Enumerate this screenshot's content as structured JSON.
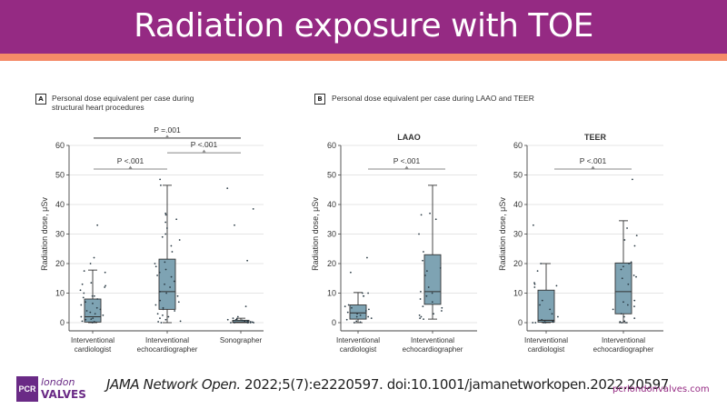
{
  "header": {
    "title": "Radiation exposure with TOE",
    "bg_color": "#952a83",
    "accent_color": "#f58b68"
  },
  "footer": {
    "journal": "JAMA Network Open.",
    "citation_rest": " 2022;5(7):e2220597. doi:10.1001/jamanetworkopen.2022.20597",
    "url": "pcrlondonvalves.com",
    "logo": {
      "pcr": "PCR",
      "london": "london",
      "valves": "VALVES"
    }
  },
  "panels": {
    "A": {
      "label": "A",
      "title_line1": "Personal dose equivalent per case during",
      "title_line2": "structural heart procedures"
    },
    "B": {
      "label": "B",
      "title": "Personal dose equivalent per case during LAAO and TEER"
    }
  },
  "colors": {
    "box_fill": "#7ea3b3",
    "box_stroke": "#333333",
    "point": "#2a3a44",
    "grid": "#dddddd"
  },
  "chart_data": [
    {
      "type": "box",
      "id": "A",
      "title": "",
      "xlabel": "",
      "ylabel": "Radiation dose, μSv",
      "ylim": [
        0,
        60
      ],
      "yticks": [
        0,
        10,
        20,
        30,
        40,
        50,
        60
      ],
      "grid": true,
      "categories": [
        [
          "Interventional",
          "cardiologist"
        ],
        [
          "Interventional",
          "echocardiographer"
        ],
        [
          "Sonographer"
        ]
      ],
      "boxes": [
        {
          "min": 0,
          "q1": 0.2,
          "median": 2,
          "q3": 8,
          "max": 17.8
        },
        {
          "min": 0,
          "q1": 4.5,
          "median": 10.5,
          "q3": 21.5,
          "max": 46.5
        },
        {
          "min": 0,
          "q1": 0,
          "median": 0.2,
          "q3": 0.8,
          "max": 1.5
        }
      ],
      "points": [
        [
          0,
          0.3,
          0.5,
          1,
          1.2,
          1.5,
          2,
          2.5,
          3,
          3.5,
          4,
          4.5,
          5,
          6,
          6.5,
          7,
          8,
          8.5,
          9,
          9,
          10,
          11,
          12,
          12.5,
          13,
          13.5,
          17,
          17.5,
          20,
          22,
          33
        ],
        [
          0,
          0.3,
          0.5,
          1,
          1.5,
          2,
          2.5,
          3,
          4,
          4.5,
          5,
          6,
          7,
          7.5,
          9,
          10,
          10.5,
          12,
          13,
          14,
          15.5,
          16,
          17,
          18,
          19,
          20,
          20.5,
          24,
          26,
          28,
          29,
          30,
          32,
          34,
          35,
          36.5,
          37,
          46.5,
          48.5
        ],
        [
          0,
          0,
          0,
          0,
          0,
          0,
          0.2,
          0.3,
          0.5,
          0.5,
          0.8,
          1,
          1,
          1.2,
          1.5,
          2,
          5.5,
          21,
          33,
          38.5,
          45.5
        ]
      ],
      "annotations": [
        {
          "text": "P <.001",
          "from": 0,
          "to": 1,
          "y": 52
        },
        {
          "text": "P <.001",
          "from": 1,
          "to": 2,
          "y": 57.5
        },
        {
          "text": "P =.001",
          "from": 0,
          "to": 2,
          "y": 62.5
        }
      ]
    },
    {
      "type": "box",
      "id": "B-LAAO",
      "title": "LAAO",
      "ylabel": "Radiation dose, μSv",
      "ylim": [
        0,
        60
      ],
      "yticks": [
        0,
        10,
        20,
        30,
        40,
        50,
        60
      ],
      "grid": true,
      "categories": [
        [
          "Interventional",
          "cardiologist"
        ],
        [
          "Interventional",
          "echocardiographer"
        ]
      ],
      "boxes": [
        {
          "min": 0,
          "q1": 1.2,
          "median": 3.3,
          "q3": 6,
          "max": 10.2
        },
        {
          "min": 1.2,
          "q1": 6.2,
          "median": 10.5,
          "q3": 23,
          "max": 46.5
        }
      ],
      "points": [
        [
          0,
          0.2,
          0.5,
          1,
          1.5,
          2,
          2,
          2.5,
          3,
          3.5,
          4,
          4.5,
          5,
          5.5,
          6,
          9,
          9,
          10,
          10,
          17,
          22
        ],
        [
          1.2,
          1.5,
          2,
          2.5,
          3,
          4,
          5,
          5.5,
          7,
          8,
          9,
          10,
          10.5,
          12,
          16,
          17.5,
          18.5,
          21,
          24,
          30,
          35,
          36.5,
          37
        ]
      ],
      "annotations": [
        {
          "text": "P <.001",
          "from": 0,
          "to": 1,
          "y": 52
        }
      ]
    },
    {
      "type": "box",
      "id": "B-TEER",
      "title": "TEER",
      "ylabel": "Radiation dose, μSv",
      "ylim": [
        0,
        60
      ],
      "yticks": [
        0,
        10,
        20,
        30,
        40,
        50,
        60
      ],
      "grid": true,
      "categories": [
        [
          "Interventional",
          "cardiologist"
        ],
        [
          "Interventional",
          "echocardiographer"
        ]
      ],
      "boxes": [
        {
          "min": 0,
          "q1": 0.2,
          "median": 0.8,
          "q3": 11,
          "max": 20
        },
        {
          "min": 0,
          "q1": 3,
          "median": 10.5,
          "q3": 20.2,
          "max": 34.5
        }
      ],
      "points": [
        [
          0,
          0,
          0,
          0,
          0.2,
          0.3,
          0.5,
          1,
          2,
          3,
          4.5,
          6,
          7.5,
          12,
          12.5,
          13,
          13.5,
          17.5,
          20,
          33
        ],
        [
          0,
          0,
          0.3,
          0.5,
          1.5,
          2,
          3,
          4.5,
          5.5,
          6,
          7,
          7.5,
          13,
          15,
          15.5,
          16,
          18,
          19,
          20,
          20.5,
          26,
          28,
          29.5,
          32,
          48.5
        ]
      ],
      "annotations": [
        {
          "text": "P <.001",
          "from": 0,
          "to": 1,
          "y": 52
        }
      ]
    }
  ]
}
